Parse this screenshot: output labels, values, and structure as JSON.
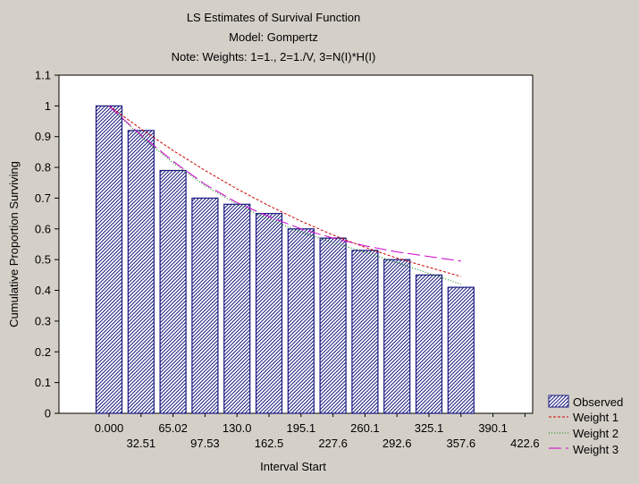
{
  "chart_data": {
    "type": "bar",
    "title_lines": [
      "LS Estimates of Survival Function",
      "Model: Gompertz",
      "Note: Weights: 1=1., 2=1./V, 3=N(I)*H(I)"
    ],
    "xlabel": "Interval Start",
    "ylabel": "Cumulative Proportion Surviving",
    "ylim": [
      0,
      1.1
    ],
    "yticks": [
      "0",
      "0.1",
      "0.2",
      "0.3",
      "0.4",
      "0.5",
      "0.6",
      "0.7",
      "0.8",
      "0.9",
      "1",
      "1.1"
    ],
    "x_tick_labels": [
      "0.000",
      "32.51",
      "65.02",
      "97.53",
      "130.0",
      "162.5",
      "195.1",
      "227.6",
      "260.1",
      "292.6",
      "325.1",
      "357.6",
      "390.1",
      "422.6"
    ],
    "categories": [
      "0.000",
      "32.51",
      "65.02",
      "97.53",
      "130.0",
      "162.5",
      "195.1",
      "227.6",
      "260.1",
      "292.6",
      "325.1",
      "357.6"
    ],
    "series": [
      {
        "name": "Observed",
        "kind": "bar",
        "color": "#1a1a80",
        "values": [
          1.0,
          0.92,
          0.79,
          0.7,
          0.68,
          0.65,
          0.6,
          0.57,
          0.53,
          0.5,
          0.45,
          0.41
        ]
      },
      {
        "name": "Weight 1",
        "kind": "line",
        "dash": "3,2",
        "color": "#cc0000",
        "values": [
          1.0,
          0.925,
          0.855,
          0.79,
          0.73,
          0.675,
          0.625,
          0.58,
          0.54,
          0.505,
          0.475,
          0.445
        ]
      },
      {
        "name": "Weight 2",
        "kind": "line",
        "dash": "1,2",
        "color": "#008000",
        "values": [
          1.0,
          0.9,
          0.815,
          0.74,
          0.68,
          0.63,
          0.59,
          0.555,
          0.525,
          0.49,
          0.455,
          0.42
        ]
      },
      {
        "name": "Weight 3",
        "kind": "line",
        "dash": "14,5",
        "color": "#cc00cc",
        "values": [
          1.0,
          0.905,
          0.82,
          0.745,
          0.685,
          0.64,
          0.6,
          0.57,
          0.545,
          0.525,
          0.51,
          0.495
        ]
      }
    ],
    "legend_position": "bottom-right",
    "grid": false
  }
}
